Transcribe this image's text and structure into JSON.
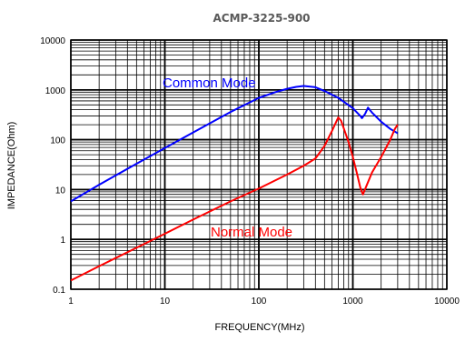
{
  "chart_data": {
    "type": "line",
    "title": "ACMP-3225-900",
    "xlabel": "FREQUENCY(MHz)",
    "ylabel": "IMPEDANCE(Ohm)",
    "x_scale": "log",
    "y_scale": "log",
    "xlim": [
      1,
      10000
    ],
    "ylim": [
      0.1,
      10000
    ],
    "grid": true,
    "x_ticks": [
      {
        "value": 1,
        "label": "1"
      },
      {
        "value": 10,
        "label": "10"
      },
      {
        "value": 100,
        "label": "100"
      },
      {
        "value": 1000,
        "label": "1000"
      },
      {
        "value": 10000,
        "label": "10000"
      }
    ],
    "y_ticks": [
      {
        "value": 0.1,
        "label": "0.1"
      },
      {
        "value": 1,
        "label": "1"
      },
      {
        "value": 10,
        "label": "10"
      },
      {
        "value": 100,
        "label": "100"
      },
      {
        "value": 1000,
        "label": "1000"
      },
      {
        "value": 10000,
        "label": "10000"
      }
    ],
    "series": [
      {
        "name": "Common Mode",
        "color": "#0000ff",
        "points": [
          [
            1,
            5.8
          ],
          [
            2,
            12.5
          ],
          [
            5,
            33
          ],
          [
            10,
            68
          ],
          [
            20,
            140
          ],
          [
            50,
            360
          ],
          [
            100,
            690
          ],
          [
            150,
            900
          ],
          [
            200,
            1050
          ],
          [
            250,
            1150
          ],
          [
            300,
            1200
          ],
          [
            400,
            1130
          ],
          [
            500,
            950
          ],
          [
            700,
            690
          ],
          [
            1000,
            430
          ],
          [
            1200,
            300
          ],
          [
            1250,
            270
          ],
          [
            1350,
            330
          ],
          [
            1450,
            440
          ],
          [
            1600,
            350
          ],
          [
            2000,
            230
          ],
          [
            2500,
            165
          ],
          [
            3000,
            135
          ]
        ]
      },
      {
        "name": "Normal Mode",
        "color": "#ff0000",
        "points": [
          [
            1,
            0.15
          ],
          [
            2,
            0.29
          ],
          [
            5,
            0.68
          ],
          [
            10,
            1.3
          ],
          [
            20,
            2.5
          ],
          [
            50,
            5.8
          ],
          [
            100,
            10.5
          ],
          [
            200,
            20
          ],
          [
            300,
            30
          ],
          [
            400,
            42
          ],
          [
            500,
            75
          ],
          [
            600,
            150
          ],
          [
            700,
            280
          ],
          [
            750,
            240
          ],
          [
            800,
            170
          ],
          [
            900,
            90
          ],
          [
            1000,
            45
          ],
          [
            1100,
            22
          ],
          [
            1200,
            11
          ],
          [
            1280,
            8
          ],
          [
            1400,
            12
          ],
          [
            1600,
            22
          ],
          [
            2000,
            45
          ],
          [
            2500,
            100
          ],
          [
            2800,
            165
          ],
          [
            3000,
            200
          ]
        ]
      }
    ]
  },
  "colors": {
    "grid_major": "#000000",
    "grid_minor": "#000000",
    "plot_border": "#000000",
    "title": "#595959"
  }
}
